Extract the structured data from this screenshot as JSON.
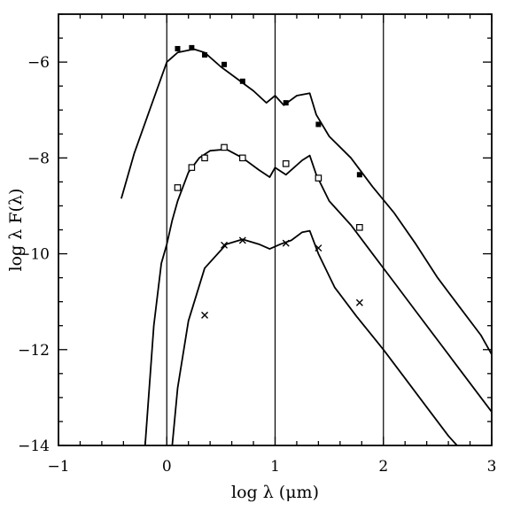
{
  "chart_data": {
    "type": "line",
    "title": "",
    "xlabel": "log λ (μm)",
    "ylabel": "log λ F(λ)",
    "xlim": [
      -1,
      3
    ],
    "ylim": [
      -14,
      -5
    ],
    "x_ticks": [
      -1,
      0,
      1,
      2,
      3
    ],
    "x_tick_labels": [
      "−1",
      "0",
      "1",
      "2",
      "3"
    ],
    "y_ticks": [
      -14,
      -12,
      -10,
      -8,
      -6
    ],
    "y_tick_labels": [
      "−14",
      "−12",
      "−10",
      "−8",
      "−6"
    ],
    "grid": "vertical lines at x = 0, 1, 2",
    "vertical_grid_x": [
      0,
      1,
      2
    ],
    "series": [
      {
        "marker": "filled-square",
        "curve": [
          [
            -0.42,
            -8.85
          ],
          [
            -0.3,
            -7.9
          ],
          [
            -0.15,
            -6.95
          ],
          [
            0.0,
            -6.0
          ],
          [
            0.1,
            -5.8
          ],
          [
            0.25,
            -5.73
          ],
          [
            0.35,
            -5.8
          ],
          [
            0.5,
            -6.1
          ],
          [
            0.65,
            -6.35
          ],
          [
            0.8,
            -6.6
          ],
          [
            0.92,
            -6.85
          ],
          [
            1.0,
            -6.7
          ],
          [
            1.08,
            -6.9
          ],
          [
            1.2,
            -6.7
          ],
          [
            1.32,
            -6.65
          ],
          [
            1.38,
            -7.1
          ],
          [
            1.5,
            -7.55
          ],
          [
            1.7,
            -8.0
          ],
          [
            1.9,
            -8.6
          ],
          [
            2.1,
            -9.15
          ],
          [
            2.3,
            -9.8
          ],
          [
            2.5,
            -10.5
          ],
          [
            2.7,
            -11.1
          ],
          [
            2.9,
            -11.7
          ],
          [
            3.0,
            -12.1
          ]
        ],
        "points": [
          [
            0.1,
            -5.72
          ],
          [
            0.23,
            -5.7
          ],
          [
            0.35,
            -5.85
          ],
          [
            0.53,
            -6.05
          ],
          [
            0.7,
            -6.4
          ],
          [
            1.1,
            -6.85
          ],
          [
            1.4,
            -7.3
          ],
          [
            1.78,
            -8.35
          ]
        ]
      },
      {
        "marker": "open-square",
        "curve": [
          [
            -0.2,
            -14.0
          ],
          [
            -0.12,
            -11.5
          ],
          [
            -0.05,
            -10.2
          ],
          [
            0.0,
            -9.8
          ],
          [
            0.05,
            -9.3
          ],
          [
            0.1,
            -8.9
          ],
          [
            0.2,
            -8.3
          ],
          [
            0.3,
            -8.0
          ],
          [
            0.4,
            -7.85
          ],
          [
            0.55,
            -7.82
          ],
          [
            0.7,
            -8.0
          ],
          [
            0.85,
            -8.25
          ],
          [
            0.95,
            -8.4
          ],
          [
            1.0,
            -8.2
          ],
          [
            1.1,
            -8.35
          ],
          [
            1.25,
            -8.05
          ],
          [
            1.32,
            -7.95
          ],
          [
            1.38,
            -8.35
          ],
          [
            1.5,
            -8.9
          ],
          [
            1.7,
            -9.4
          ],
          [
            1.9,
            -10.0
          ],
          [
            2.1,
            -10.6
          ],
          [
            2.3,
            -11.2
          ],
          [
            2.5,
            -11.8
          ],
          [
            2.7,
            -12.4
          ],
          [
            2.9,
            -13.0
          ],
          [
            3.0,
            -13.3
          ]
        ],
        "points": [
          [
            0.1,
            -8.62
          ],
          [
            0.23,
            -8.2
          ],
          [
            0.35,
            -8.0
          ],
          [
            0.53,
            -7.78
          ],
          [
            0.7,
            -8.0
          ],
          [
            1.1,
            -8.12
          ],
          [
            1.4,
            -8.42
          ],
          [
            1.78,
            -9.45
          ]
        ]
      },
      {
        "marker": "cross",
        "curve": [
          [
            0.05,
            -14.0
          ],
          [
            0.1,
            -12.8
          ],
          [
            0.2,
            -11.4
          ],
          [
            0.35,
            -10.3
          ],
          [
            0.55,
            -9.8
          ],
          [
            0.7,
            -9.7
          ],
          [
            0.85,
            -9.8
          ],
          [
            0.95,
            -9.9
          ],
          [
            1.05,
            -9.8
          ],
          [
            1.15,
            -9.72
          ],
          [
            1.25,
            -9.55
          ],
          [
            1.32,
            -9.52
          ],
          [
            1.4,
            -10.0
          ],
          [
            1.55,
            -10.7
          ],
          [
            1.75,
            -11.3
          ],
          [
            2.0,
            -12.0
          ],
          [
            2.2,
            -12.6
          ],
          [
            2.4,
            -13.2
          ],
          [
            2.6,
            -13.8
          ],
          [
            2.68,
            -14.0
          ]
        ],
        "points": [
          [
            0.35,
            -11.28
          ],
          [
            0.53,
            -9.82
          ],
          [
            0.7,
            -9.72
          ],
          [
            1.1,
            -9.78
          ],
          [
            1.4,
            -9.88
          ],
          [
            1.78,
            -11.02
          ]
        ]
      }
    ]
  }
}
